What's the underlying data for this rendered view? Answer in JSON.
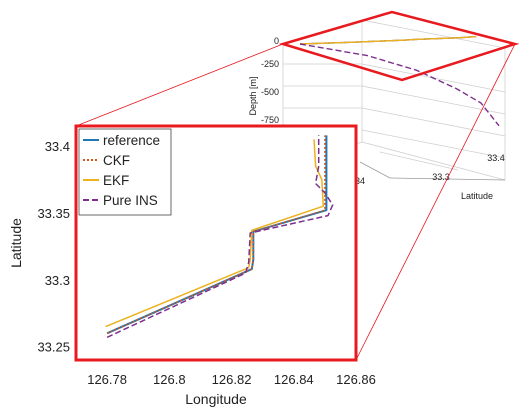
{
  "chart_data": [
    {
      "type": "line",
      "view": "3d-perspective",
      "zlabel": "Depth [m]",
      "ylabel": "Latitude",
      "z_ticks": [
        "0",
        "-250",
        "-500",
        "-750"
      ],
      "lat_ticks": [
        "33.3",
        "33.4"
      ],
      "partial_tick": "34",
      "grid": true,
      "highlight_color": "#e8191f",
      "series": [
        {
          "name": "reference",
          "color": "#1f77b4",
          "depth": [
            0,
            0,
            0,
            0,
            0,
            0
          ],
          "x": [
            0,
            0.25,
            0.55,
            0.62,
            0.86,
            0.95
          ],
          "y": [
            0,
            0.05,
            0.08,
            0.05,
            0.07,
            0.02
          ]
        },
        {
          "name": "CKF",
          "color": "#d95319",
          "depth": [
            0,
            0,
            0,
            0,
            0,
            0
          ],
          "x": [
            0,
            0.25,
            0.55,
            0.62,
            0.86,
            0.95
          ],
          "y": [
            0,
            0.05,
            0.08,
            0.05,
            0.07,
            0.02
          ]
        },
        {
          "name": "EKF",
          "color": "#edb120",
          "depth": [
            0,
            0,
            0,
            0,
            0,
            0
          ],
          "x": [
            0,
            0.25,
            0.55,
            0.62,
            0.86,
            0.95
          ],
          "y": [
            0,
            0.05,
            0.08,
            0.05,
            0.07,
            0.02
          ]
        },
        {
          "name": "Pure INS",
          "color": "#7e2f8e",
          "depth": [
            0,
            -120,
            -260,
            -430,
            -560,
            -760
          ],
          "x": [
            0,
            0.35,
            0.6,
            0.8,
            0.92,
            1.0
          ],
          "y": [
            0,
            0.15,
            0.3,
            0.45,
            0.6,
            0.78
          ]
        }
      ]
    },
    {
      "type": "line",
      "xlabel": "Longitude",
      "ylabel": "Latitude",
      "xlim": [
        126.77,
        126.86
      ],
      "ylim": [
        33.24,
        33.415
      ],
      "x_ticks": [
        126.78,
        126.8,
        126.82,
        126.84,
        126.86
      ],
      "y_ticks": [
        33.25,
        33.3,
        33.35,
        33.4
      ],
      "legend_position": "top-left",
      "border_color": "#e8191f",
      "series": [
        {
          "name": "reference",
          "color": "#1f77b4",
          "dash": "",
          "width": 2,
          "x": [
            126.78,
            126.8265,
            126.827,
            126.827,
            126.8505,
            126.8505
          ],
          "y": [
            33.26,
            33.308,
            33.315,
            33.336,
            33.352,
            33.408
          ]
        },
        {
          "name": "CKF",
          "color": "#d95319",
          "dash": "2,2",
          "width": 1.5,
          "x": [
            126.78,
            126.8265,
            126.827,
            126.827,
            126.85,
            126.85
          ],
          "y": [
            33.26,
            33.308,
            33.315,
            33.336,
            33.352,
            33.408
          ]
        },
        {
          "name": "EKF",
          "color": "#edb120",
          "dash": "",
          "width": 1.5,
          "x": [
            126.7795,
            126.8255,
            126.826,
            126.8265,
            126.8495,
            126.849,
            126.847,
            126.8465
          ],
          "y": [
            33.265,
            33.309,
            33.315,
            33.337,
            33.355,
            33.375,
            33.385,
            33.405
          ]
        },
        {
          "name": "Pure INS",
          "color": "#7e2f8e",
          "dash": "6,3",
          "width": 1.5,
          "x": [
            126.78,
            126.8245,
            126.8255,
            126.826,
            126.851,
            126.8525,
            126.85,
            126.847,
            126.848,
            126.848
          ],
          "y": [
            33.257,
            33.305,
            33.313,
            33.335,
            33.348,
            33.356,
            33.365,
            33.372,
            33.385,
            33.408
          ]
        }
      ]
    }
  ]
}
